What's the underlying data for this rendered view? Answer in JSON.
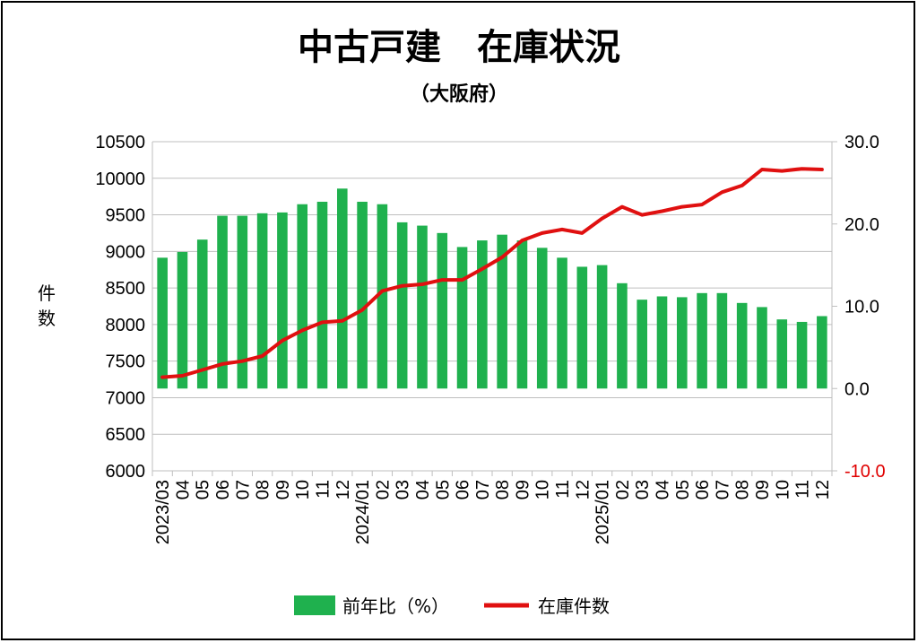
{
  "chart_data": {
    "type": "bar",
    "title": "中古戸建　在庫状況",
    "subtitle": "（大阪府）",
    "ylabel": "件\n数",
    "y_left_lim": [
      6000,
      10500
    ],
    "y_left_ticks": [
      "6000",
      "6500",
      "7000",
      "7500",
      "8000",
      "8500",
      "9000",
      "9500",
      "10000",
      "10500"
    ],
    "y_right_lim": [
      -10.0,
      30.0
    ],
    "y_right_ticks": [
      "-10.0",
      "0.0",
      "10.0",
      "20.0",
      "30.0"
    ],
    "x_labels": [
      "2023/03",
      "04",
      "05",
      "06",
      "07",
      "08",
      "09",
      "10",
      "11",
      "12",
      "2024/01",
      "02",
      "03",
      "04",
      "05",
      "06",
      "07",
      "08",
      "09",
      "10",
      "11",
      "12",
      "2025/01",
      "02",
      "03",
      "04",
      "05",
      "06",
      "07",
      "08",
      "09",
      "10",
      "11",
      "12"
    ],
    "series": [
      {
        "name": "前年比（%）",
        "type": "bar",
        "axis": "right",
        "color": "#1fb14e",
        "values": [
          15.9,
          16.6,
          18.1,
          21.0,
          21.0,
          21.3,
          21.4,
          22.4,
          22.7,
          24.3,
          22.7,
          22.4,
          20.2,
          19.8,
          18.9,
          17.2,
          18.0,
          18.7,
          18.0,
          17.1,
          15.9,
          14.8,
          15.0,
          12.8,
          10.8,
          11.2,
          11.1,
          11.6,
          11.6,
          10.4,
          9.9,
          8.4,
          8.1,
          8.8
        ]
      },
      {
        "name": "在庫件数",
        "type": "line",
        "axis": "left",
        "color": "#e01010",
        "values": [
          7280,
          7300,
          7380,
          7460,
          7500,
          7570,
          7780,
          7920,
          8030,
          8050,
          8200,
          8460,
          8530,
          8550,
          8610,
          8610,
          8760,
          8920,
          9150,
          9250,
          9300,
          9250,
          9450,
          9610,
          9500,
          9550,
          9610,
          9640,
          9810,
          9900,
          10120,
          10100,
          10130,
          10120
        ]
      }
    ],
    "grid": true,
    "legend_position": "bottom"
  }
}
